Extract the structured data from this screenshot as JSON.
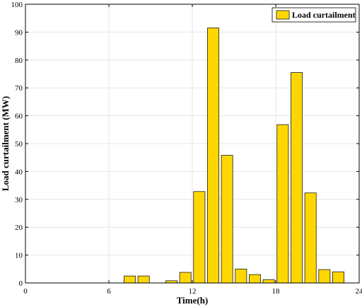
{
  "chart_data": {
    "type": "bar",
    "xlabel": "Time(h)",
    "ylabel": "Load curtailment (MW)",
    "xlim": [
      0,
      24
    ],
    "ylim": [
      0,
      100
    ],
    "x_ticks": [
      0,
      6,
      12,
      18,
      24
    ],
    "y_ticks": [
      0,
      10,
      20,
      30,
      40,
      50,
      60,
      70,
      80,
      90,
      100
    ],
    "grid": true,
    "legend_position": "top-right",
    "series": [
      {
        "name": "Load curtailment",
        "color": "#ffd700",
        "x": [
          1,
          2,
          3,
          4,
          5,
          6,
          7,
          8,
          9,
          10,
          11,
          12,
          13,
          14,
          15,
          16,
          17,
          18,
          19,
          20,
          21,
          22,
          23,
          24
        ],
        "values": [
          0,
          0,
          0,
          0,
          0,
          0,
          0,
          2.5,
          2.5,
          0,
          0.8,
          3.8,
          32.8,
          91.5,
          45.8,
          5.0,
          3.0,
          1.2,
          56.8,
          75.5,
          32.3,
          4.8,
          4.0,
          0
        ]
      }
    ]
  }
}
